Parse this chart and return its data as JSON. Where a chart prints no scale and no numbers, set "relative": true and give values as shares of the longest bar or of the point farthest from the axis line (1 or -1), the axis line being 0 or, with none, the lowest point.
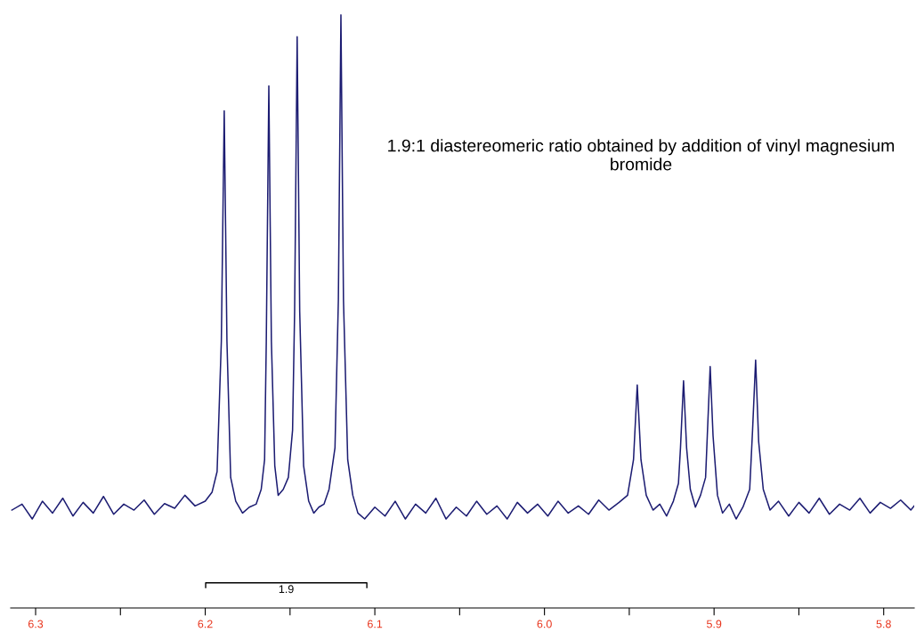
{
  "chart_data": {
    "type": "line",
    "relative": true,
    "x": [
      6.314,
      6.308,
      6.302,
      6.296,
      6.29,
      6.284,
      6.278,
      6.272,
      6.266,
      6.26,
      6.254,
      6.248,
      6.242,
      6.236,
      6.23,
      6.224,
      6.218,
      6.212,
      6.206,
      6.2,
      6.196,
      6.193,
      6.1905,
      6.1888,
      6.1872,
      6.185,
      6.182,
      6.178,
      6.174,
      6.17,
      6.167,
      6.165,
      6.164,
      6.1625,
      6.161,
      6.159,
      6.157,
      6.154,
      6.151,
      6.1485,
      6.1473,
      6.1458,
      6.1443,
      6.142,
      6.139,
      6.136,
      6.133,
      6.13,
      6.127,
      6.1235,
      6.1215,
      6.12,
      6.1185,
      6.116,
      6.113,
      6.11,
      6.106,
      6.1,
      6.094,
      6.088,
      6.082,
      6.076,
      6.07,
      6.064,
      6.058,
      6.052,
      6.046,
      6.04,
      6.034,
      6.028,
      6.022,
      6.016,
      6.01,
      6.004,
      5.998,
      5.992,
      5.986,
      5.98,
      5.974,
      5.968,
      5.962,
      5.956,
      5.951,
      5.9475,
      5.9453,
      5.9431,
      5.94,
      5.936,
      5.932,
      5.928,
      5.924,
      5.921,
      5.9198,
      5.918,
      5.9162,
      5.914,
      5.911,
      5.908,
      5.905,
      5.904,
      5.9023,
      5.9006,
      5.898,
      5.895,
      5.891,
      5.887,
      5.883,
      5.879,
      5.8773,
      5.8755,
      5.8737,
      5.871,
      5.867,
      5.862,
      5.856,
      5.85,
      5.844,
      5.838,
      5.832,
      5.826,
      5.82,
      5.814,
      5.808,
      5.802,
      5.796,
      5.79,
      5.784,
      5.782
    ],
    "series": [
      {
        "color": "#1c1c72",
        "values": [
          0.165,
          0.175,
          0.15,
          0.18,
          0.16,
          0.185,
          0.155,
          0.178,
          0.16,
          0.188,
          0.158,
          0.175,
          0.165,
          0.182,
          0.158,
          0.176,
          0.168,
          0.19,
          0.172,
          0.18,
          0.195,
          0.23,
          0.45,
          0.838,
          0.45,
          0.22,
          0.18,
          0.16,
          0.17,
          0.175,
          0.2,
          0.25,
          0.45,
          0.88,
          0.45,
          0.24,
          0.19,
          0.2,
          0.22,
          0.3,
          0.5,
          0.963,
          0.5,
          0.24,
          0.18,
          0.16,
          0.17,
          0.175,
          0.2,
          0.27,
          0.52,
          1.0,
          0.52,
          0.25,
          0.19,
          0.16,
          0.15,
          0.17,
          0.155,
          0.18,
          0.15,
          0.175,
          0.16,
          0.185,
          0.15,
          0.17,
          0.155,
          0.18,
          0.158,
          0.172,
          0.15,
          0.178,
          0.16,
          0.175,
          0.155,
          0.18,
          0.16,
          0.172,
          0.158,
          0.182,
          0.165,
          0.178,
          0.19,
          0.25,
          0.376,
          0.25,
          0.19,
          0.165,
          0.175,
          0.155,
          0.18,
          0.21,
          0.27,
          0.383,
          0.27,
          0.2,
          0.17,
          0.19,
          0.22,
          0.29,
          0.407,
          0.29,
          0.19,
          0.16,
          0.175,
          0.15,
          0.17,
          0.2,
          0.3,
          0.418,
          0.28,
          0.2,
          0.165,
          0.18,
          0.155,
          0.178,
          0.16,
          0.185,
          0.158,
          0.175,
          0.165,
          0.185,
          0.16,
          0.178,
          0.168,
          0.182,
          0.165,
          0.172
        ]
      }
    ],
    "xlim": [
      6.3147,
      5.782
    ],
    "xticks": [
      6.3,
      {
        "value": 6.25,
        "label": null
      },
      6.2,
      {
        "value": 6.15,
        "label": null
      },
      6.1,
      {
        "value": 6.05,
        "label": null
      },
      {
        "value": 6.0,
        "label": "6.0"
      },
      {
        "value": 5.95,
        "label": null
      },
      5.9,
      {
        "value": 5.85,
        "label": null
      },
      5.8
    ],
    "annotations": [
      "1.9:1 diastereomeric ratio obtained by addition of vinyl magnesium bromide",
      "1.9"
    ],
    "grid": false,
    "legend": false,
    "marker": "none",
    "line_style": "solid"
  }
}
